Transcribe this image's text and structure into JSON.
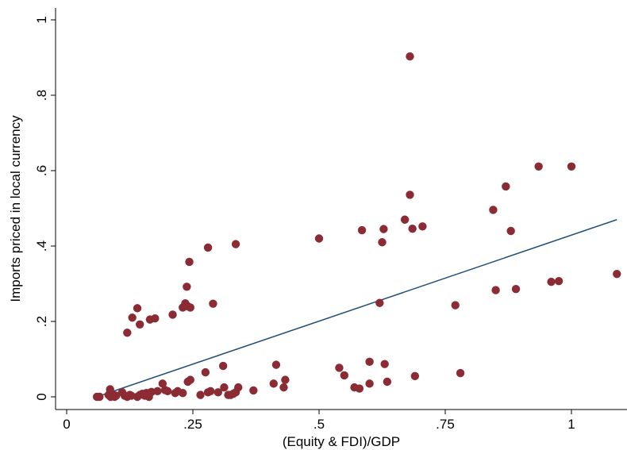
{
  "chart_data": {
    "type": "scatter",
    "title": "",
    "xlabel": "(Equity & FDI)/GDP",
    "ylabel": "Imports priced in local currency",
    "xlim": [
      0,
      1.1
    ],
    "ylim": [
      0,
      1
    ],
    "x_ticks": [
      0,
      0.25,
      0.5,
      0.75,
      1
    ],
    "x_tick_labels": [
      "0",
      ".25",
      ".5",
      ".75",
      "1"
    ],
    "y_ticks": [
      0,
      0.2,
      0.4,
      0.6,
      0.8,
      1
    ],
    "y_tick_labels": [
      "0",
      ".2",
      ".4",
      ".6",
      ".8",
      "1"
    ],
    "grid": false,
    "legend": "none",
    "marker_color": "#8b2b33",
    "fit_line_color": "#1f4e79",
    "fit_line": {
      "x": [
        0.06,
        1.09
      ],
      "y": [
        0.0,
        0.47
      ]
    },
    "points": [
      [
        0.06,
        0.0
      ],
      [
        0.065,
        0.0
      ],
      [
        0.083,
        0.005
      ],
      [
        0.086,
        0.02
      ],
      [
        0.087,
        0.0
      ],
      [
        0.09,
        0.005
      ],
      [
        0.093,
        0.005
      ],
      [
        0.095,
        0.0
      ],
      [
        0.098,
        0.003
      ],
      [
        0.11,
        0.012
      ],
      [
        0.115,
        0.003
      ],
      [
        0.12,
        0.0
      ],
      [
        0.125,
        0.005
      ],
      [
        0.128,
        0.003
      ],
      [
        0.14,
        0.0
      ],
      [
        0.145,
        0.005
      ],
      [
        0.15,
        0.008
      ],
      [
        0.155,
        0.003
      ],
      [
        0.158,
        0.01
      ],
      [
        0.16,
        0.005
      ],
      [
        0.163,
        0.0
      ],
      [
        0.165,
        0.01
      ],
      [
        0.168,
        0.013
      ],
      [
        0.18,
        0.015
      ],
      [
        0.19,
        0.035
      ],
      [
        0.195,
        0.018
      ],
      [
        0.2,
        0.015
      ],
      [
        0.215,
        0.01
      ],
      [
        0.22,
        0.015
      ],
      [
        0.23,
        0.01
      ],
      [
        0.24,
        0.04
      ],
      [
        0.245,
        0.045
      ],
      [
        0.265,
        0.005
      ],
      [
        0.275,
        0.065
      ],
      [
        0.28,
        0.012
      ],
      [
        0.285,
        0.015
      ],
      [
        0.3,
        0.012
      ],
      [
        0.31,
        0.082
      ],
      [
        0.312,
        0.025
      ],
      [
        0.32,
        0.005
      ],
      [
        0.325,
        0.005
      ],
      [
        0.33,
        0.008
      ],
      [
        0.335,
        0.012
      ],
      [
        0.34,
        0.025
      ],
      [
        0.37,
        0.017
      ],
      [
        0.41,
        0.035
      ],
      [
        0.415,
        0.085
      ],
      [
        0.43,
        0.025
      ],
      [
        0.433,
        0.045
      ],
      [
        0.12,
        0.17
      ],
      [
        0.13,
        0.21
      ],
      [
        0.14,
        0.235
      ],
      [
        0.145,
        0.192
      ],
      [
        0.165,
        0.205
      ],
      [
        0.175,
        0.208
      ],
      [
        0.21,
        0.218
      ],
      [
        0.23,
        0.237
      ],
      [
        0.235,
        0.248
      ],
      [
        0.238,
        0.292
      ],
      [
        0.24,
        0.24
      ],
      [
        0.243,
        0.358
      ],
      [
        0.245,
        0.237
      ],
      [
        0.28,
        0.396
      ],
      [
        0.29,
        0.247
      ],
      [
        0.335,
        0.405
      ],
      [
        0.5,
        0.42
      ],
      [
        0.54,
        0.077
      ],
      [
        0.55,
        0.057
      ],
      [
        0.57,
        0.025
      ],
      [
        0.58,
        0.022
      ],
      [
        0.585,
        0.442
      ],
      [
        0.6,
        0.035
      ],
      [
        0.6,
        0.093
      ],
      [
        0.62,
        0.249
      ],
      [
        0.625,
        0.41
      ],
      [
        0.628,
        0.445
      ],
      [
        0.63,
        0.087
      ],
      [
        0.635,
        0.04
      ],
      [
        0.67,
        0.47
      ],
      [
        0.68,
        0.536
      ],
      [
        0.68,
        0.903
      ],
      [
        0.685,
        0.446
      ],
      [
        0.69,
        0.055
      ],
      [
        0.705,
        0.452
      ],
      [
        0.77,
        0.243
      ],
      [
        0.78,
        0.063
      ],
      [
        0.845,
        0.496
      ],
      [
        0.85,
        0.283
      ],
      [
        0.87,
        0.558
      ],
      [
        0.88,
        0.44
      ],
      [
        0.89,
        0.286
      ],
      [
        0.935,
        0.611
      ],
      [
        0.96,
        0.305
      ],
      [
        0.975,
        0.307
      ],
      [
        1.0,
        0.611
      ],
      [
        1.09,
        0.326
      ]
    ]
  }
}
